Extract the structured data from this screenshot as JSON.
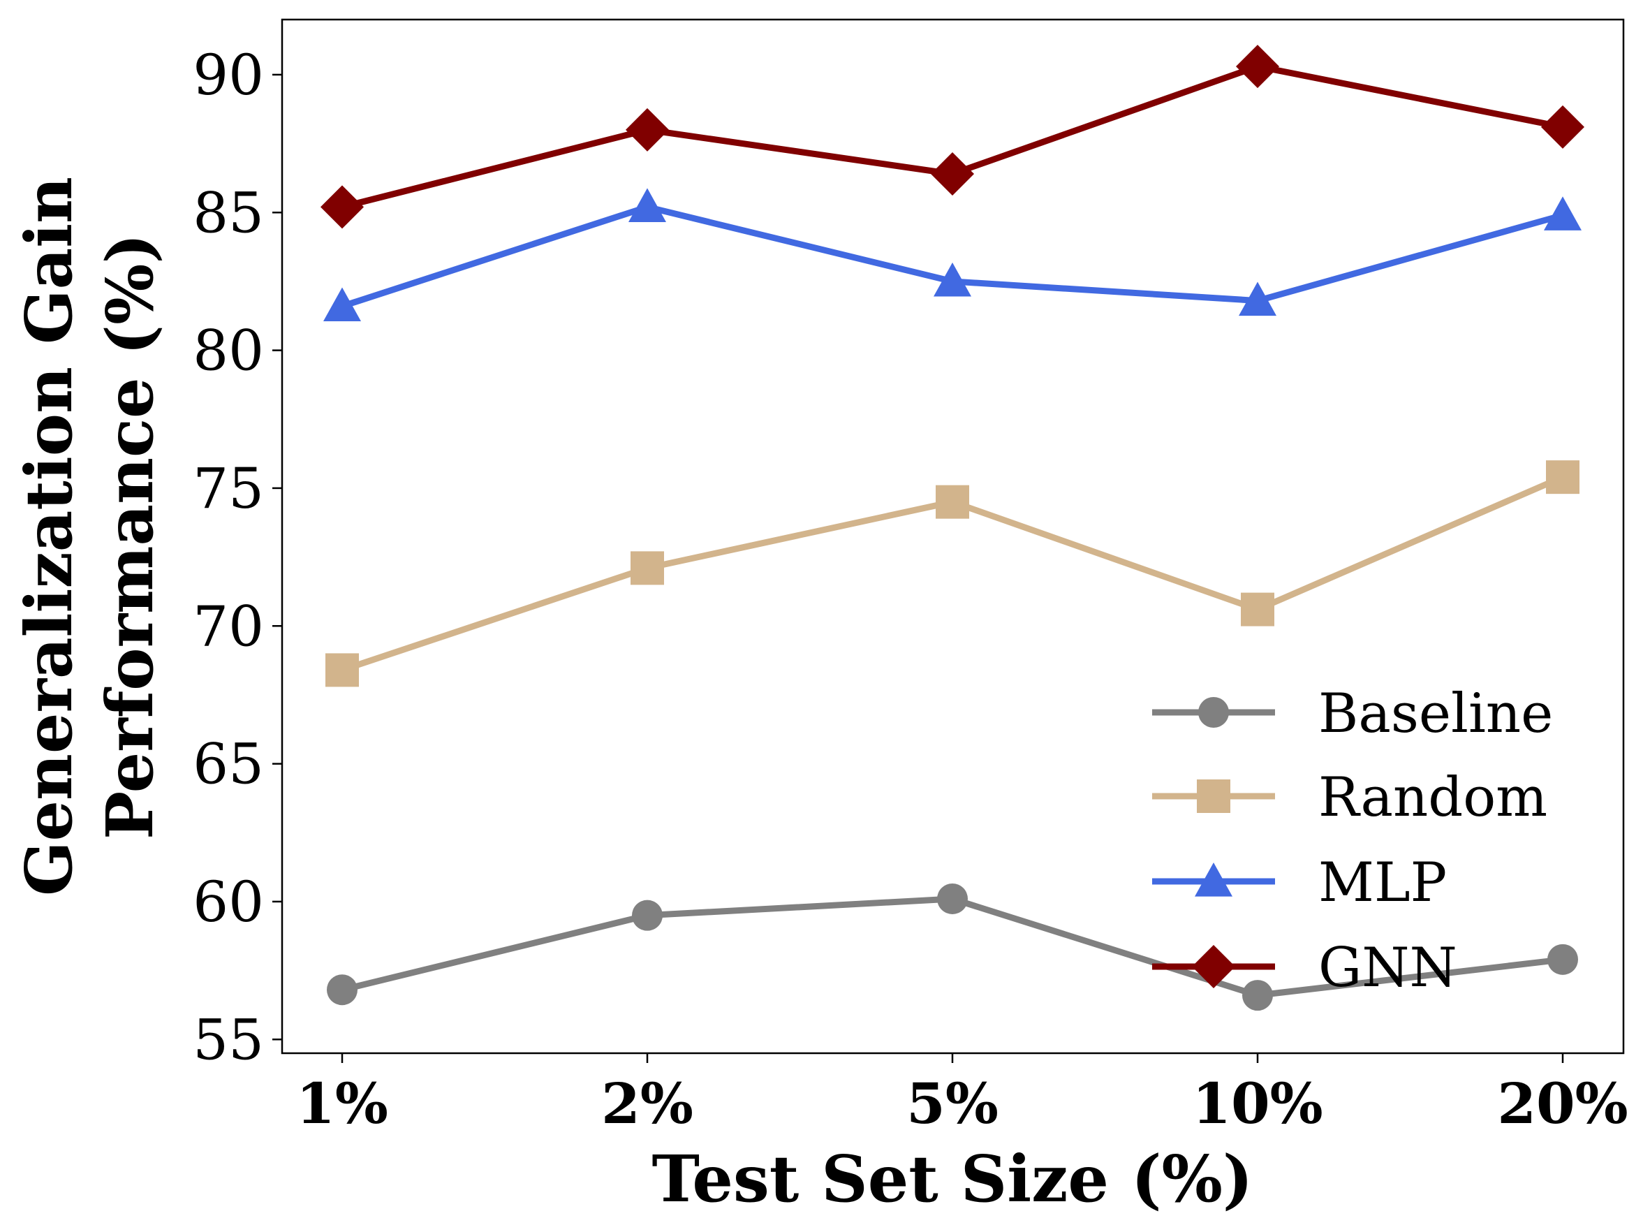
{
  "chart_data": {
    "type": "line",
    "title": "",
    "xlabel": "Test Set Size (%)",
    "ylabel_lines": [
      "Generalization Gain",
      "Performance (%)"
    ],
    "categories": [
      "1%",
      "2%",
      "5%",
      "10%",
      "20%"
    ],
    "ylim": [
      54.5,
      92
    ],
    "yticks": [
      55,
      60,
      65,
      70,
      75,
      80,
      85,
      90
    ],
    "grid": false,
    "legend_position": "lower-right",
    "series": [
      {
        "name": "Baseline",
        "color": "#808080",
        "marker": "circle",
        "values": [
          56.8,
          59.5,
          60.1,
          56.6,
          57.9
        ]
      },
      {
        "name": "Random",
        "color": "#D2B48C",
        "marker": "square",
        "values": [
          68.4,
          72.1,
          74.5,
          70.6,
          75.4
        ]
      },
      {
        "name": "MLP",
        "color": "#4169E1",
        "marker": "triangle",
        "values": [
          81.6,
          85.2,
          82.5,
          81.8,
          84.9
        ]
      },
      {
        "name": "GNN",
        "color": "#800000",
        "marker": "diamond",
        "values": [
          85.2,
          88.0,
          86.4,
          90.3,
          88.1
        ]
      }
    ]
  }
}
